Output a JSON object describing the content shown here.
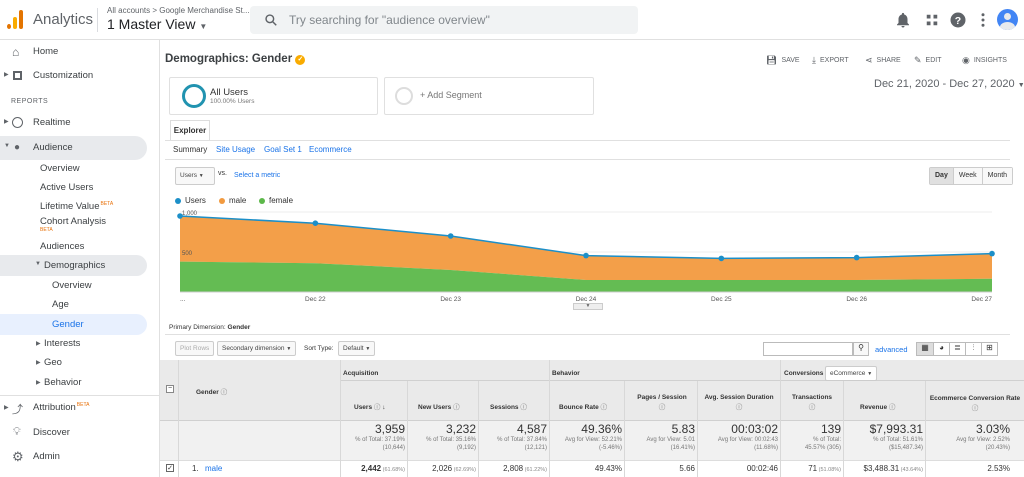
{
  "app": {
    "name": "Analytics",
    "account_path": "All accounts > Google Merchandise St...",
    "view_name": "1 Master View"
  },
  "search": {
    "placeholder": "Try searching for \"audience overview\""
  },
  "colors": {
    "brand_orange": "#f9ab00",
    "brand_dark": "#e37400",
    "accent": "#1a73e8",
    "series_users": "#1c8fc8",
    "series_male": "#f29a3f",
    "series_female": "#5cb84a"
  },
  "sidebar": {
    "home": "Home",
    "customization": "Customization",
    "reports_heading": "REPORTS",
    "realtime": "Realtime",
    "audience": "Audience",
    "audience_items": [
      "Overview",
      "Active Users",
      "Lifetime Value",
      "Cohort Analysis",
      "Audiences"
    ],
    "beta": "BETA",
    "demographics": "Demographics",
    "demographics_items": [
      "Overview",
      "Age",
      "Gender"
    ],
    "sub_groups": [
      "Interests",
      "Geo",
      "Behavior"
    ],
    "attribution": "Attribution",
    "discover": "Discover",
    "admin": "Admin"
  },
  "page": {
    "title": "Demographics: Gender",
    "actions": [
      "SAVE",
      "EXPORT",
      "SHARE",
      "EDIT",
      "INSIGHTS"
    ],
    "segment_name": "All Users",
    "segment_pct": "100.00% Users",
    "add_segment": "+ Add Segment",
    "date_range": "Dec 21, 2020 - Dec 27, 2020",
    "tab_explorer": "Explorer",
    "subtabs": [
      "Summary",
      "Site Usage",
      "Goal Set 1",
      "Ecommerce"
    ],
    "metric_select": "Users",
    "vs": "vs.",
    "select_metric": "Select a metric",
    "granularity": [
      "Day",
      "Week",
      "Month"
    ],
    "legend": [
      "Users",
      "male",
      "female"
    ]
  },
  "chart_data": {
    "type": "area",
    "categories": [
      "...",
      "Dec 22",
      "Dec 23",
      "Dec 24",
      "Dec 25",
      "Dec 26",
      "Dec 27"
    ],
    "y_tick_labels": [
      "1,000",
      "500"
    ],
    "ylim": [
      0,
      1000
    ],
    "series": [
      {
        "name": "Users",
        "values": [
          950,
          860,
          700,
          455,
          420,
          430,
          480
        ]
      },
      {
        "name": "male",
        "values": [
          950,
          860,
          700,
          455,
          420,
          430,
          480
        ]
      },
      {
        "name": "female",
        "values": [
          380,
          360,
          275,
          150,
          150,
          150,
          165
        ]
      }
    ]
  },
  "table": {
    "primary_dimension_label": "Primary Dimension:",
    "primary_dimension": "Gender",
    "plot_rows": "Plot Rows",
    "secondary_dimension": "Secondary dimension",
    "sort_type_label": "Sort Type:",
    "sort_type": "Default",
    "advanced": "advanced",
    "groups": [
      "Acquisition",
      "Behavior",
      "Conversions"
    ],
    "conversions_select": "eCommerce",
    "dimension_header": "Gender",
    "headers": [
      "Users",
      "New Users",
      "Sessions",
      "Bounce Rate",
      "Pages / Session",
      "Avg. Session Duration",
      "Transactions",
      "Revenue",
      "Ecommerce Conversion Rate"
    ],
    "totals": [
      {
        "value": "3,959",
        "sub1": "% of Total: 37.19%",
        "sub2": "(10,644)"
      },
      {
        "value": "3,232",
        "sub1": "% of Total: 35.16%",
        "sub2": "(9,192)"
      },
      {
        "value": "4,587",
        "sub1": "% of Total: 37.84%",
        "sub2": "(12,121)"
      },
      {
        "value": "49.36%",
        "sub1": "Avg for View: 52.21%",
        "sub2": "(-5.46%)"
      },
      {
        "value": "5.83",
        "sub1": "Avg for View: 5.01",
        "sub2": "(16.41%)"
      },
      {
        "value": "00:03:02",
        "sub1": "Avg for View: 00:02:43",
        "sub2": "(11.68%)"
      },
      {
        "value": "139",
        "sub1": "% of Total:",
        "sub2": "45.57% (305)"
      },
      {
        "value": "$7,993.31",
        "sub1": "% of Total: 51.61%",
        "sub2": "($15,487.34)"
      },
      {
        "value": "3.03%",
        "sub1": "Avg for View: 2.52%",
        "sub2": "(20.43%)"
      }
    ],
    "row": {
      "index": "1.",
      "label": "male",
      "values": [
        {
          "v": "2,442",
          "p": "(61.68%)"
        },
        {
          "v": "2,026",
          "p": "(62.69%)"
        },
        {
          "v": "2,808",
          "p": "(61.22%)"
        },
        {
          "v": "49.43%",
          "p": ""
        },
        {
          "v": "5.66",
          "p": ""
        },
        {
          "v": "00:02:46",
          "p": ""
        },
        {
          "v": "71",
          "p": "(51.08%)"
        },
        {
          "v": "$3,488.31",
          "p": "(43.64%)"
        },
        {
          "v": "2.53%",
          "p": ""
        }
      ]
    }
  }
}
